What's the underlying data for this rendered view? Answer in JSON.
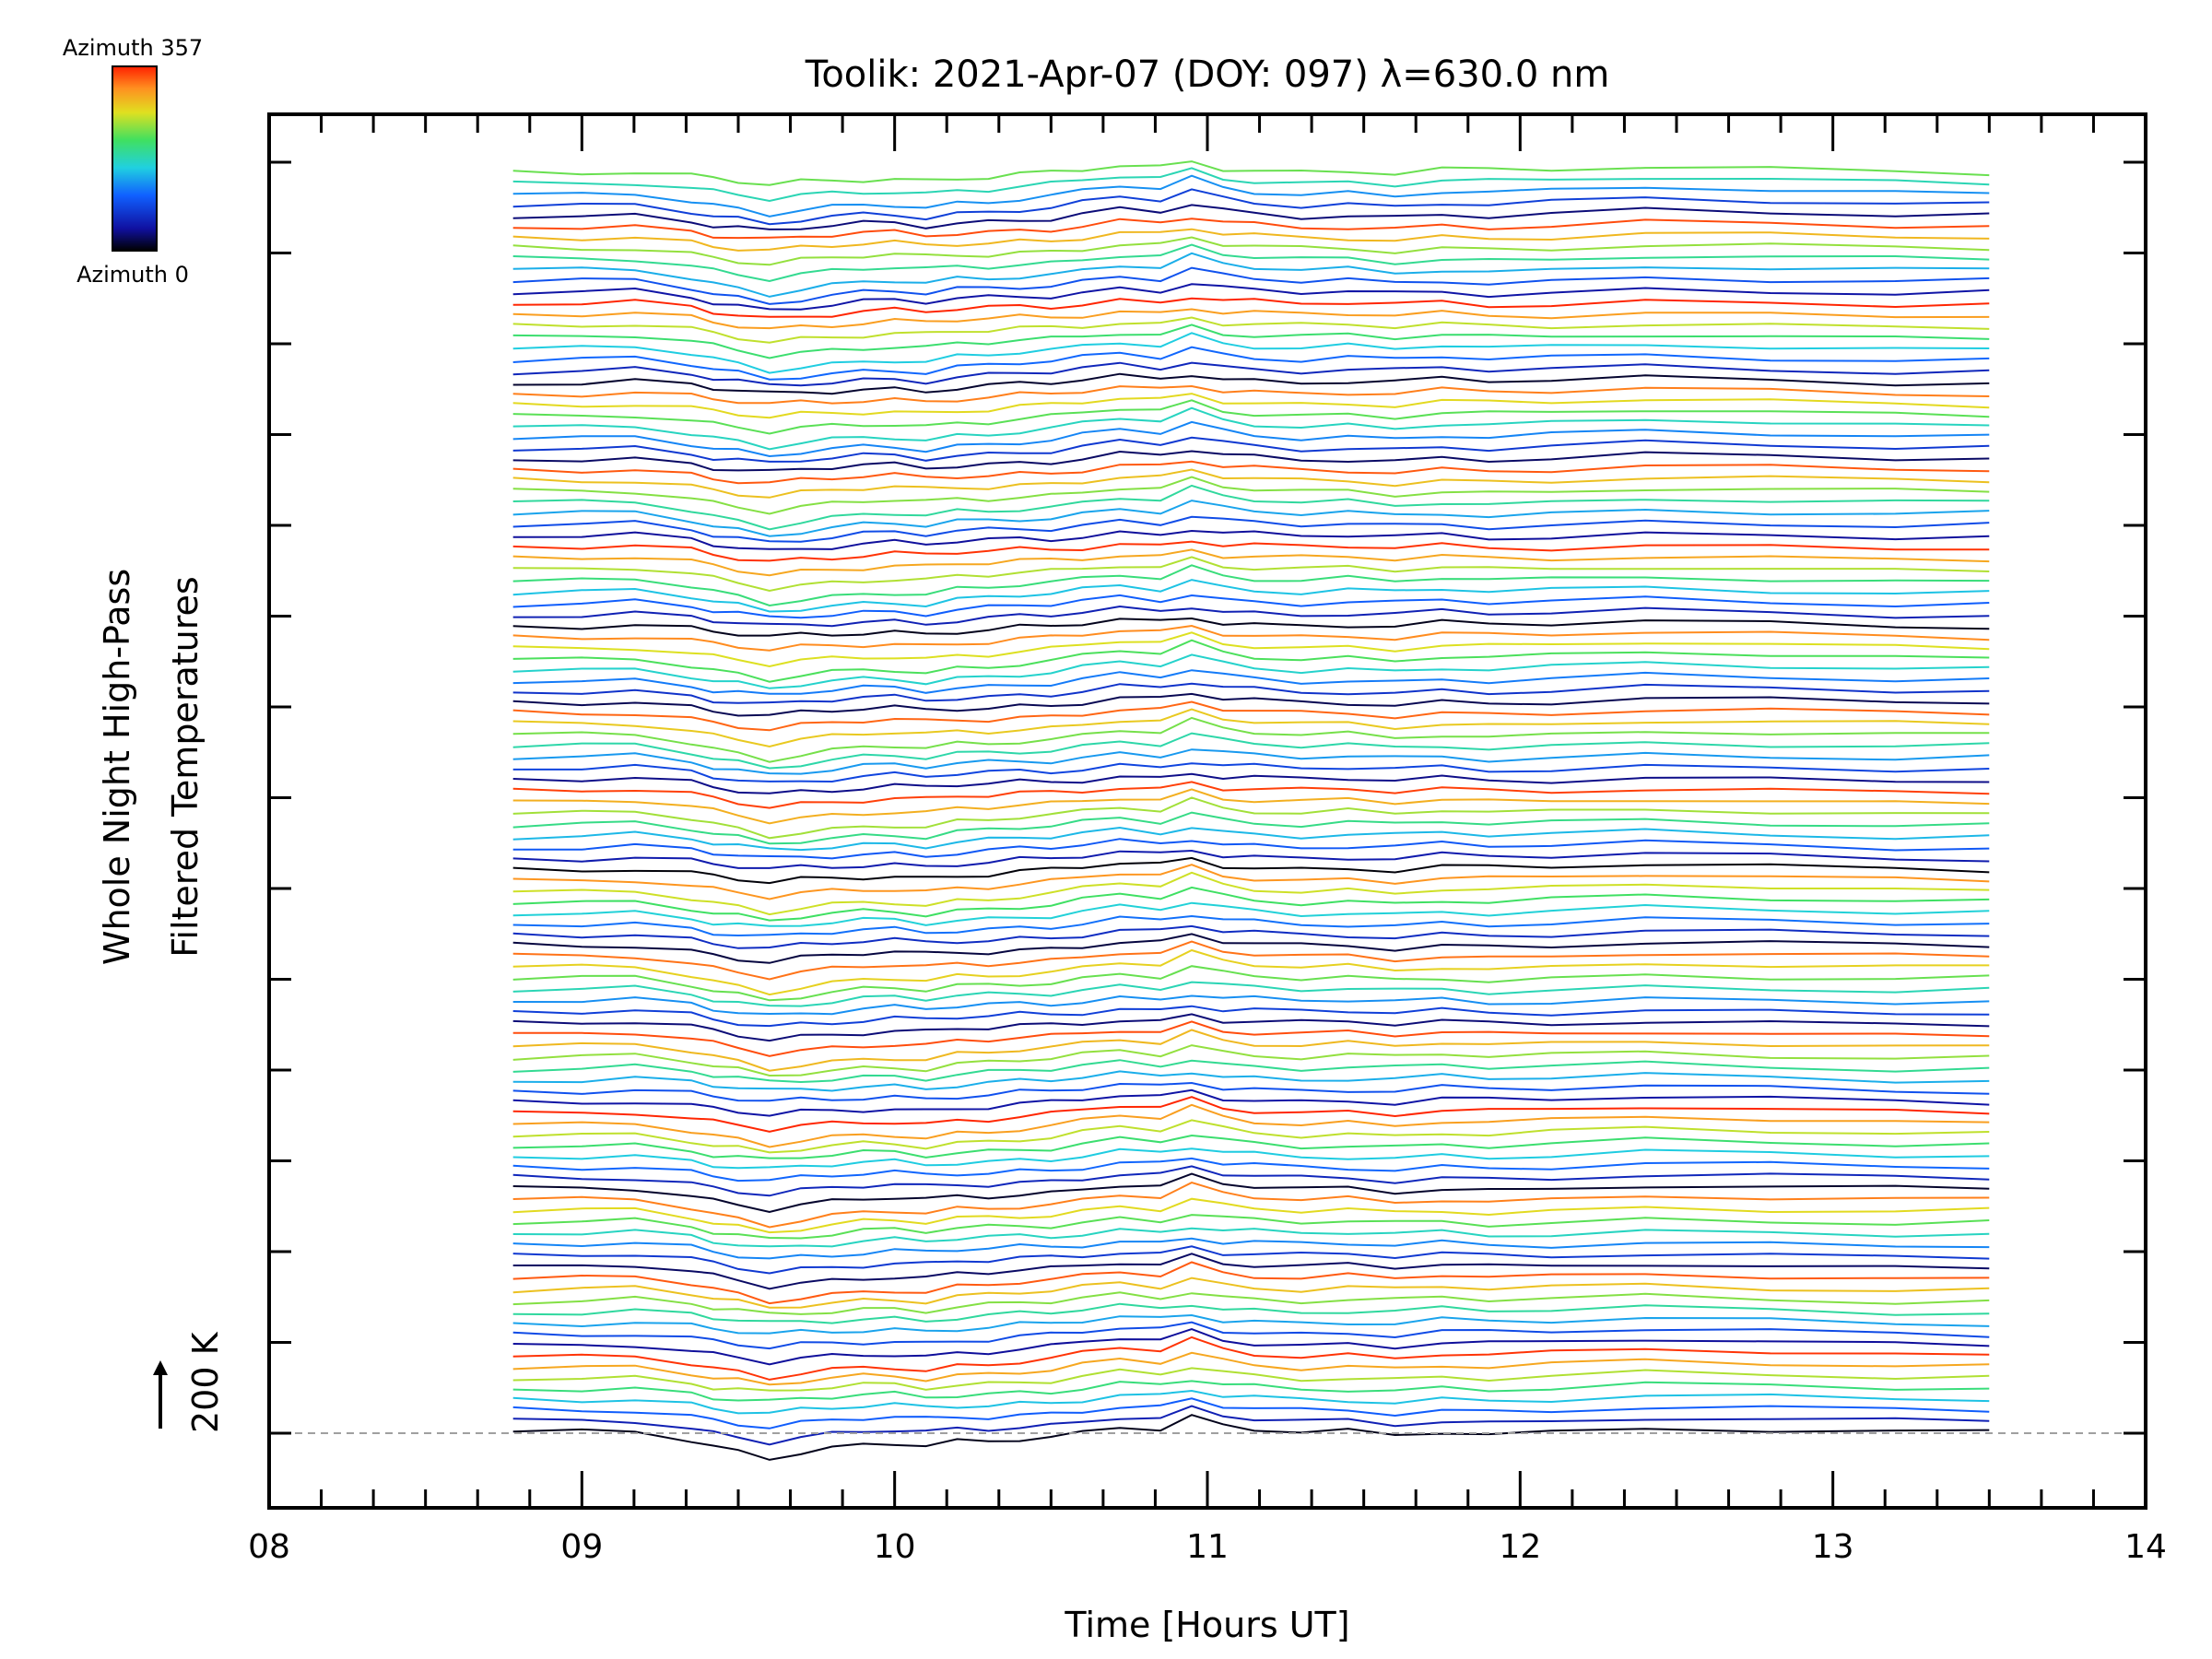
{
  "chart_data": {
    "type": "line",
    "title": "Toolik: 2021-Apr-07 (DOY: 097) λ=630.0 nm",
    "xlabel": "Time [Hours UT]",
    "ylabel_line1": "Whole Night High-Pass",
    "ylabel_line2": "Filtered Temperatures",
    "xlim": [
      8,
      14
    ],
    "x_ticks": [
      "08",
      "09",
      "10",
      "11",
      "12",
      "13",
      "14"
    ],
    "scale_bar_label": "200 K",
    "colorbar": {
      "top_label": "Azimuth 357",
      "bottom_label": "Azimuth 0"
    },
    "grid": false,
    "num_series": 115,
    "series_offset_K": 0,
    "times": [
      8.78,
      9.0,
      9.17,
      9.35,
      9.42,
      9.5,
      9.6,
      9.7,
      9.8,
      9.9,
      10.0,
      10.1,
      10.2,
      10.3,
      10.4,
      10.5,
      10.6,
      10.72,
      10.85,
      10.95,
      11.05,
      11.15,
      11.3,
      11.45,
      11.6,
      11.75,
      11.9,
      12.1,
      12.4,
      12.8,
      13.2,
      13.5
    ],
    "base_profile_K": [
      0,
      0,
      5,
      -20,
      -40,
      -55,
      -75,
      -60,
      -50,
      -40,
      -35,
      -45,
      -30,
      -25,
      -15,
      -10,
      5,
      25,
      15,
      50,
      20,
      10,
      0,
      5,
      -5,
      10,
      0,
      5,
      20,
      10,
      0,
      0
    ]
  }
}
